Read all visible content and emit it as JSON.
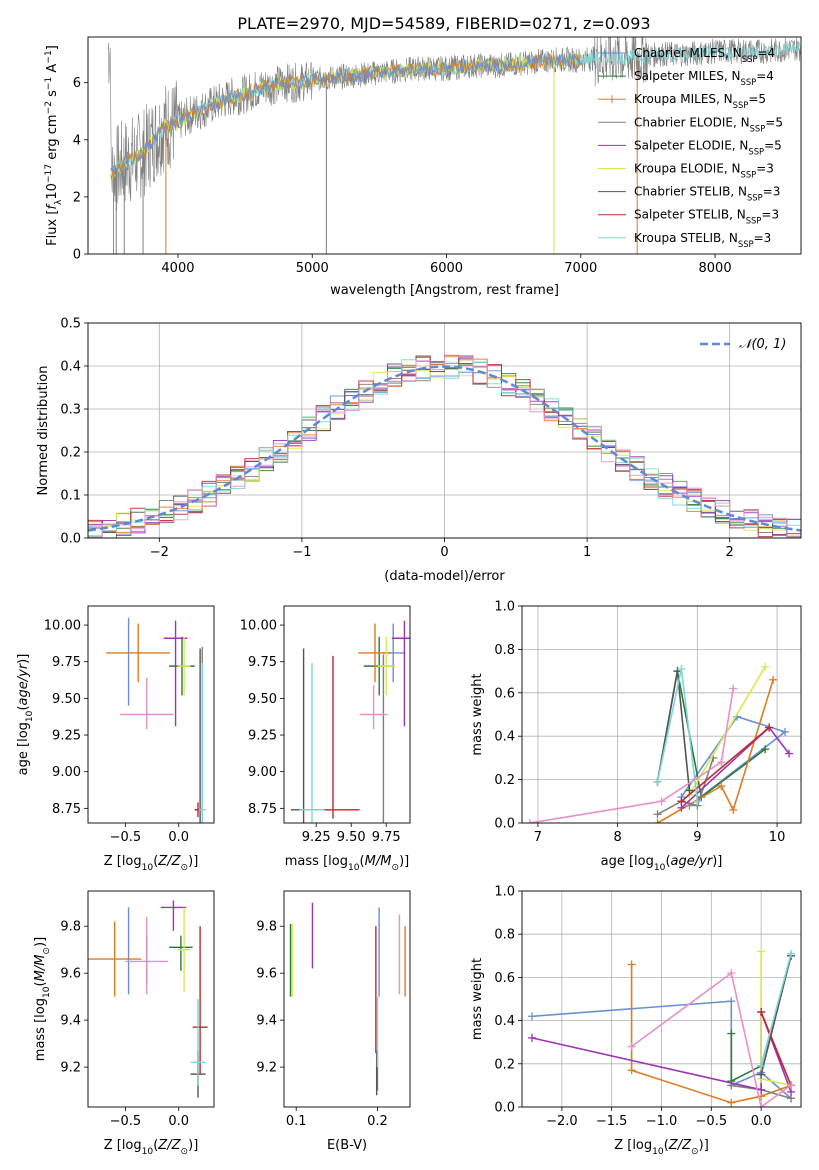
{
  "chart_data": [
    {
      "id": "spectrum",
      "type": "line",
      "title": "PLATE=2970, MJD=54589, FIBERID=0271, z=0.093",
      "xlabel": "wavelength [Angstrom, rest frame]",
      "ylabel_parts": [
        "Flux [",
        "f",
        "λ",
        "10",
        "−17",
        " erg cm",
        "−2",
        " s",
        "−1",
        " A",
        "−1",
        "]"
      ],
      "xlim": [
        3330,
        8640
      ],
      "ylim": [
        0,
        7.6
      ],
      "xticks": [
        4000,
        5000,
        6000,
        7000,
        8000
      ],
      "yticks": [
        0,
        2,
        4,
        6
      ],
      "grid": false,
      "legend_placement": "top-right",
      "series": [
        {
          "name": "Chabrier MILES, N",
          "sub": "SSP",
          "suffix": "=4",
          "color": "#6a8fd8"
        },
        {
          "name": "Salpeter MILES, N",
          "sub": "SSP",
          "suffix": "=4",
          "color": "#2a7a3a"
        },
        {
          "name": "Kroupa MILES, N",
          "sub": "SSP",
          "suffix": "=5",
          "color": "#e07b20"
        },
        {
          "name": "Chabrier ELODIE, N",
          "sub": "SSP",
          "suffix": "=5",
          "color": "#808080"
        },
        {
          "name": "Salpeter ELODIE, N",
          "sub": "SSP",
          "suffix": "=5",
          "color": "#9b35b5"
        },
        {
          "name": "Kroupa ELODIE, N",
          "sub": "SSP",
          "suffix": "=3",
          "color": "#d4ec4a"
        },
        {
          "name": "Chabrier STELIB, N",
          "sub": "SSP",
          "suffix": "=3",
          "color": "#555555"
        },
        {
          "name": "Salpeter STELIB, N",
          "sub": "SSP",
          "suffix": "=3",
          "color": "#c0272d"
        },
        {
          "name": "Kroupa STELIB, N",
          "sub": "SSP",
          "suffix": "=3",
          "color": "#7fd6d6"
        }
      ],
      "continuum": {
        "x": [
          3500,
          3550,
          3600,
          3650,
          3700,
          3750,
          3800,
          3850,
          3900,
          3950,
          4000,
          4100,
          4200,
          4300,
          4400,
          4500,
          4600,
          4700,
          4800,
          4900,
          5000,
          5200,
          5400,
          5600,
          5800,
          6000,
          6200,
          6400,
          6600,
          6800,
          7000,
          7200,
          7400,
          7600,
          7800,
          8000,
          8200,
          8400,
          8600
        ],
        "y": [
          2.8,
          3.0,
          3.2,
          3.3,
          3.4,
          3.6,
          3.9,
          4.2,
          4.5,
          4.5,
          4.6,
          4.9,
          5.1,
          5.3,
          5.5,
          5.6,
          5.8,
          5.9,
          6.0,
          6.0,
          6.1,
          6.2,
          6.3,
          6.4,
          6.5,
          6.5,
          6.6,
          6.6,
          6.7,
          6.8,
          6.8,
          6.9,
          6.9,
          7.0,
          7.0,
          7.1,
          7.1,
          7.1,
          7.2
        ]
      }
    },
    {
      "id": "residuals",
      "type": "line",
      "xlabel": "(data-model)/error",
      "ylabel": "Normed distribution",
      "xlim": [
        -2.5,
        2.5
      ],
      "ylim": [
        0,
        0.5
      ],
      "xticks": [
        -2,
        -1,
        0,
        1,
        2
      ],
      "yticks": [
        0.0,
        0.1,
        0.2,
        0.3,
        0.4,
        0.5
      ],
      "grid": true,
      "legend_placement": "top-right",
      "legend_entry": "𝒩(0, 1)",
      "gaussian_color": "#5b8ad6"
    },
    {
      "id": "age_vs_z",
      "type": "scatter",
      "xlabel": "Z [log10(Z/Z⊙)]",
      "ylabel": "age  [log10(age/yr)]",
      "xlim": [
        -0.85,
        0.33
      ],
      "ylim": [
        8.65,
        10.13
      ],
      "xticks": [
        -0.5,
        0.0
      ],
      "yticks": [
        8.75,
        9.0,
        9.25,
        9.5,
        9.75,
        10.0
      ],
      "points": [
        {
          "x": -0.47,
          "y": 9.75,
          "xerr": 0.0,
          "yerr": [
            0.3,
            0.3
          ],
          "color": "#6a8fd8"
        },
        {
          "x": 0.03,
          "y": 9.72,
          "xerr": 0.12,
          "yerr": [
            0.2,
            0.2
          ],
          "color": "#2a7a3a"
        },
        {
          "x": -0.38,
          "y": 9.81,
          "xerr": 0.3,
          "yerr": [
            0.2,
            0.2
          ],
          "color": "#e07b20"
        },
        {
          "x": 0.22,
          "y": 9.0,
          "xerr": 0.0,
          "yerr": [
            0.85,
            0.85
          ],
          "color": "#808080"
        },
        {
          "x": -0.03,
          "y": 9.91,
          "xerr": 0.11,
          "yerr": [
            0.6,
            0.12
          ],
          "color": "#9b35b5"
        },
        {
          "x": 0.05,
          "y": 9.72,
          "xerr": 0.06,
          "yerr": [
            0.2,
            0.2
          ],
          "color": "#d4ec4a"
        },
        {
          "x": 0.2,
          "y": 8.74,
          "xerr": 0.05,
          "yerr": [
            0.1,
            1.1
          ],
          "color": "#555555"
        },
        {
          "x": 0.18,
          "y": 8.74,
          "xerr": 0.03,
          "yerr": [
            0.05,
            0.05
          ],
          "color": "#c0272d"
        },
        {
          "x": 0.22,
          "y": 8.74,
          "xerr": 0.03,
          "yerr": [
            0.1,
            1.0
          ],
          "color": "#7fd6d6"
        },
        {
          "x": -0.3,
          "y": 9.39,
          "xerr": 0.25,
          "yerr": [
            0.1,
            0.25
          ],
          "color": "#e88fc8"
        }
      ]
    },
    {
      "id": "age_vs_mass",
      "type": "scatter",
      "xlabel": "mass [log10(M/M⊙)]",
      "xlim": [
        9.02,
        9.92
      ],
      "ylim": [
        8.65,
        10.13
      ],
      "xticks": [
        9.25,
        9.5,
        9.75
      ],
      "yticks": [
        8.75,
        9.0,
        9.25,
        9.5,
        9.75,
        10.0
      ],
      "points": [
        {
          "x": 9.8,
          "y": 9.81,
          "xerr": 0.08,
          "yerr": [
            0.2,
            0.2
          ],
          "color": "#6a8fd8"
        },
        {
          "x": 9.7,
          "y": 9.72,
          "xerr": 0.11,
          "yerr": [
            0.2,
            0.2
          ],
          "color": "#2a7a3a"
        },
        {
          "x": 9.67,
          "y": 9.81,
          "xerr": 0.12,
          "yerr": [
            0.2,
            0.2
          ],
          "color": "#e07b20"
        },
        {
          "x": 9.73,
          "y": 9.0,
          "xerr": 0.0,
          "yerr": [
            0.8,
            0.8
          ],
          "color": "#808080"
        },
        {
          "x": 9.88,
          "y": 9.91,
          "xerr": 0.09,
          "yerr": [
            0.6,
            0.12
          ],
          "color": "#9b35b5"
        },
        {
          "x": 9.75,
          "y": 9.72,
          "xerr": 0.06,
          "yerr": [
            0.2,
            0.2
          ],
          "color": "#d4ec4a"
        },
        {
          "x": 9.16,
          "y": 8.74,
          "xerr": 0.09,
          "yerr": [
            0.1,
            1.1
          ],
          "color": "#555555"
        },
        {
          "x": 9.37,
          "y": 8.74,
          "xerr": 0.19,
          "yerr": [
            0.06,
            1.05
          ],
          "color": "#c0272d"
        },
        {
          "x": 9.22,
          "y": 8.74,
          "xerr": 0.09,
          "yerr": [
            0.1,
            1.0
          ],
          "color": "#7fd6d6"
        },
        {
          "x": 9.66,
          "y": 9.39,
          "xerr": 0.1,
          "yerr": [
            0.1,
            0.2
          ],
          "color": "#e88fc8"
        }
      ]
    },
    {
      "id": "mw_vs_age",
      "type": "line",
      "xlabel": "age  [log10(age/yr)]",
      "ylabel": "mass weight",
      "xlim": [
        6.8,
        10.3
      ],
      "ylim": [
        0,
        1
      ],
      "xticks": [
        7,
        8,
        9,
        10
      ],
      "yticks": [
        0.0,
        0.2,
        0.4,
        0.6,
        0.8,
        1.0
      ],
      "grid": true,
      "series": [
        {
          "color": "#6a8fd8",
          "x": [
            8.8,
            9.5,
            10.1,
            8.9
          ],
          "y": [
            0.12,
            0.49,
            0.42,
            0.08
          ]
        },
        {
          "color": "#2a7a3a",
          "x": [
            8.5,
            8.75,
            9.05,
            9.85
          ],
          "y": [
            0.19,
            0.7,
            0.12,
            0.34
          ]
        },
        {
          "color": "#e07b20",
          "x": [
            8.5,
            9.3,
            9.45,
            9.95
          ],
          "y": [
            0.0,
            0.17,
            0.06,
            0.66
          ]
        },
        {
          "color": "#808080",
          "x": [
            8.5,
            8.8,
            9.0,
            9.2
          ],
          "y": [
            0.04,
            0.1,
            0.08,
            0.3
          ]
        },
        {
          "color": "#9b35b5",
          "x": [
            8.8,
            9.9,
            10.15
          ],
          "y": [
            0.07,
            0.44,
            0.32
          ]
        },
        {
          "color": "#d4ec4a",
          "x": [
            8.9,
            9.85
          ],
          "y": [
            0.13,
            0.72
          ]
        },
        {
          "color": "#555555",
          "x": [
            8.5,
            8.75,
            8.9
          ],
          "y": [
            0.19,
            0.7,
            0.15
          ]
        },
        {
          "color": "#c0272d",
          "x": [
            8.8,
            9.9
          ],
          "y": [
            0.1,
            0.44
          ]
        },
        {
          "color": "#7fd6d6",
          "x": [
            8.5,
            8.8,
            9.0
          ],
          "y": [
            0.19,
            0.71,
            0.1
          ]
        },
        {
          "color": "#e88fc8",
          "x": [
            6.9,
            8.55,
            9.3,
            9.45
          ],
          "y": [
            0.0,
            0.1,
            0.28,
            0.62
          ]
        }
      ]
    },
    {
      "id": "mass_vs_z",
      "type": "scatter",
      "xlabel": "Z [log10(Z/Z⊙)]",
      "ylabel": "mass [log10(M/M⊙)]",
      "xlim": [
        -0.85,
        0.33
      ],
      "ylim": [
        9.03,
        9.95
      ],
      "xticks": [
        -0.5,
        0.0
      ],
      "yticks": [
        9.2,
        9.4,
        9.6,
        9.8
      ],
      "points": [
        {
          "x": -0.47,
          "y": 9.66,
          "xerr": 0.0,
          "yerr": [
            0.15,
            0.22
          ],
          "color": "#6a8fd8"
        },
        {
          "x": -0.3,
          "y": 9.66,
          "xerr": 0.0,
          "yerr": [
            0.1,
            0.1
          ],
          "color": "#2a7a3a"
        },
        {
          "x": -0.6,
          "y": 9.66,
          "xerr": 0.25,
          "yerr": [
            0.16,
            0.16
          ],
          "color": "#e07b20"
        },
        {
          "x": 0.02,
          "y": 9.71,
          "xerr": 0.11,
          "yerr": [
            0.1,
            0.05
          ],
          "color": "#2a7a3a"
        },
        {
          "x": -0.05,
          "y": 9.88,
          "xerr": 0.12,
          "yerr": [
            0.1,
            0.03
          ],
          "color": "#9b35b5"
        },
        {
          "x": 0.05,
          "y": 9.7,
          "xerr": 0.06,
          "yerr": [
            0.18,
            0.18
          ],
          "color": "#d4ec4a"
        },
        {
          "x": 0.18,
          "y": 9.17,
          "xerr": 0.07,
          "yerr": [
            0.1,
            0.1
          ],
          "color": "#555555"
        },
        {
          "x": 0.2,
          "y": 9.37,
          "xerr": 0.07,
          "yerr": [
            0.2,
            0.43
          ],
          "color": "#c0272d"
        },
        {
          "x": 0.18,
          "y": 9.22,
          "xerr": 0.07,
          "yerr": [
            0.1,
            0.27
          ],
          "color": "#7fd6d6"
        },
        {
          "x": -0.3,
          "y": 9.65,
          "xerr": 0.2,
          "yerr": [
            0.14,
            0.19
          ],
          "color": "#e88fc8"
        }
      ]
    },
    {
      "id": "mass_vs_ebv",
      "type": "scatter",
      "xlabel": "E(B-V)",
      "xlim": [
        0.085,
        0.24
      ],
      "ylim": [
        9.03,
        9.95
      ],
      "xticks": [
        0.1,
        0.2
      ],
      "yticks": [
        9.2,
        9.4,
        9.6,
        9.8
      ],
      "points": [
        {
          "x": 0.202,
          "y": 9.65,
          "yerr": [
            0.15,
            0.23
          ],
          "color": "#6a8fd8"
        },
        {
          "x": 0.093,
          "y": 9.65,
          "yerr": [
            0.15,
            0.16
          ],
          "color": "#2a7a3a"
        },
        {
          "x": 0.234,
          "y": 9.65,
          "yerr": [
            0.15,
            0.15
          ],
          "color": "#e07b20"
        },
        {
          "x": 0.2,
          "y": 9.17,
          "yerr": [
            0.07,
            0.1
          ],
          "color": "#808080"
        },
        {
          "x": 0.12,
          "y": 9.76,
          "yerr": [
            0.14,
            0.14
          ],
          "color": "#9b35b5"
        },
        {
          "x": 0.095,
          "y": 9.65,
          "yerr": [
            0.15,
            0.16
          ],
          "color": "#d4ec4a"
        },
        {
          "x": 0.199,
          "y": 9.17,
          "yerr": [
            0.09,
            0.1
          ],
          "color": "#555555"
        },
        {
          "x": 0.198,
          "y": 9.37,
          "yerr": [
            0.11,
            0.43
          ],
          "color": "#c0272d"
        },
        {
          "x": 0.2,
          "y": 9.4,
          "yerr": [
            0.2,
            0.1
          ],
          "color": "#7fd6d6"
        },
        {
          "x": 0.227,
          "y": 9.66,
          "yerr": [
            0.15,
            0.19
          ],
          "color": "#e88fc8"
        }
      ]
    },
    {
      "id": "mw_vs_z",
      "type": "line",
      "xlabel": "Z [log10(Z/Z⊙)]",
      "ylabel": "mass weight",
      "xlim": [
        -2.4,
        0.4
      ],
      "ylim": [
        0,
        1
      ],
      "xticks": [
        -2.0,
        -1.5,
        -1.0,
        -0.5,
        0.0
      ],
      "yticks": [
        0.0,
        0.2,
        0.4,
        0.6,
        0.8,
        1.0
      ],
      "grid": true,
      "series": [
        {
          "color": "#6a8fd8",
          "x": [
            -2.3,
            -0.3,
            -0.3,
            0.0,
            0.3
          ],
          "y": [
            0.42,
            0.49,
            0.1,
            0.16,
            0.04
          ]
        },
        {
          "color": "#2a7a3a",
          "x": [
            -0.3,
            -0.3,
            0.0,
            0.3
          ],
          "y": [
            0.34,
            0.12,
            0.19,
            0.7
          ]
        },
        {
          "color": "#e07b20",
          "x": [
            -1.3,
            -1.3,
            -0.3,
            0.0,
            0.3
          ],
          "y": [
            0.66,
            0.17,
            0.02,
            0.05,
            0.1
          ]
        },
        {
          "color": "#808080",
          "x": [
            -0.3,
            0.0,
            0.3
          ],
          "y": [
            0.1,
            0.08,
            0.04
          ]
        },
        {
          "color": "#9b35b5",
          "x": [
            -2.3,
            0.0,
            0.0,
            0.3
          ],
          "y": [
            0.32,
            0.08,
            0.44,
            0.07
          ]
        },
        {
          "color": "#d4ec4a",
          "x": [
            0.0,
            0.0,
            0.3
          ],
          "y": [
            0.72,
            0.13,
            0.1
          ]
        },
        {
          "color": "#555555",
          "x": [
            0.0,
            0.3
          ],
          "y": [
            0.15,
            0.7
          ]
        },
        {
          "color": "#c0272d",
          "x": [
            0.0,
            0.3
          ],
          "y": [
            0.44,
            0.1
          ]
        },
        {
          "color": "#7fd6d6",
          "x": [
            0.0,
            0.3
          ],
          "y": [
            0.19,
            0.71
          ]
        },
        {
          "color": "#e88fc8",
          "x": [
            -1.3,
            -0.3,
            0.0,
            0.3
          ],
          "y": [
            0.28,
            0.62,
            0.0,
            0.1
          ]
        }
      ]
    }
  ]
}
